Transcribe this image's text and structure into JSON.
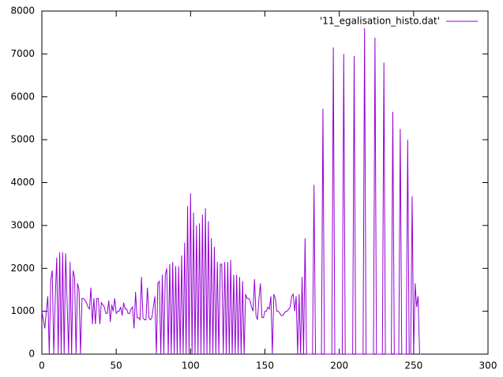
{
  "chart_data": {
    "type": "line",
    "x": [
      0,
      1,
      2,
      3,
      4,
      5,
      6,
      7,
      8,
      9,
      10,
      11,
      12,
      13,
      14,
      15,
      16,
      17,
      18,
      19,
      20,
      21,
      22,
      23,
      24,
      25,
      26,
      27,
      28,
      29,
      30,
      31,
      32,
      33,
      34,
      35,
      36,
      37,
      38,
      39,
      40,
      41,
      42,
      43,
      44,
      45,
      46,
      47,
      48,
      49,
      50,
      51,
      52,
      53,
      54,
      55,
      56,
      57,
      58,
      59,
      60,
      61,
      62,
      63,
      64,
      65,
      66,
      67,
      68,
      69,
      70,
      71,
      72,
      73,
      74,
      75,
      76,
      77,
      78,
      79,
      80,
      81,
      82,
      83,
      84,
      85,
      86,
      87,
      88,
      89,
      90,
      91,
      92,
      93,
      94,
      95,
      96,
      97,
      98,
      99,
      100,
      101,
      102,
      103,
      104,
      105,
      106,
      107,
      108,
      109,
      110,
      111,
      112,
      113,
      114,
      115,
      116,
      117,
      118,
      119,
      120,
      121,
      122,
      123,
      124,
      125,
      126,
      127,
      128,
      129,
      130,
      131,
      132,
      133,
      134,
      135,
      136,
      137,
      138,
      139,
      140,
      141,
      142,
      143,
      144,
      145,
      146,
      147,
      148,
      149,
      150,
      151,
      152,
      153,
      154,
      155,
      156,
      157,
      158,
      159,
      160,
      161,
      162,
      163,
      164,
      165,
      166,
      167,
      168,
      169,
      170,
      171,
      172,
      173,
      174,
      175,
      176,
      177,
      178,
      179,
      180,
      181,
      182,
      183,
      184,
      185,
      186,
      187,
      188,
      189,
      190,
      191,
      192,
      193,
      194,
      195,
      196,
      197,
      198,
      199,
      200,
      201,
      202,
      203,
      204,
      205,
      206,
      207,
      208,
      209,
      210,
      211,
      212,
      213,
      214,
      215,
      216,
      217,
      218,
      219,
      220,
      221,
      222,
      223,
      224,
      225,
      226,
      227,
      228,
      229,
      230,
      231,
      232,
      233,
      234,
      235,
      236,
      237,
      238,
      239,
      240,
      241,
      242,
      243,
      244,
      245,
      246,
      247,
      248,
      249,
      250,
      251,
      252,
      253,
      254,
      255
    ],
    "series": [
      {
        "name": "'11_egalisation_histo.dat'",
        "color": "#9400d3",
        "values": [
          1000,
          800,
          600,
          1000,
          1350,
          0,
          1750,
          1950,
          0,
          1300,
          2250,
          0,
          2370,
          0,
          2370,
          0,
          2350,
          1200,
          0,
          2150,
          0,
          1950,
          1800,
          0,
          1650,
          1500,
          0,
          1300,
          1300,
          1250,
          1200,
          1100,
          1050,
          1550,
          700,
          1300,
          700,
          1300,
          1300,
          700,
          1200,
          1150,
          1100,
          950,
          950,
          1250,
          750,
          1150,
          1000,
          1300,
          950,
          1000,
          1000,
          1100,
          900,
          1200,
          1050,
          1050,
          950,
          950,
          1050,
          1100,
          600,
          1450,
          850,
          850,
          800,
          1800,
          850,
          800,
          800,
          1550,
          850,
          800,
          850,
          1100,
          1350,
          0,
          1650,
          1700,
          0,
          1850,
          0,
          1850,
          2000,
          0,
          2100,
          0,
          2150,
          0,
          2050,
          0,
          2050,
          0,
          2300,
          0,
          2600,
          0,
          3450,
          0,
          3750,
          0,
          3300,
          0,
          3000,
          0,
          3050,
          0,
          3250,
          0,
          3400,
          0,
          3100,
          0,
          2700,
          0,
          2500,
          0,
          2150,
          0,
          2100,
          2100,
          0,
          2150,
          0,
          2150,
          0,
          2200,
          0,
          1850,
          0,
          1850,
          0,
          1800,
          0,
          1700,
          0,
          1400,
          1300,
          1300,
          1250,
          1100,
          1000,
          1750,
          900,
          800,
          1300,
          1650,
          850,
          850,
          1000,
          1000,
          1100,
          1050,
          1350,
          0,
          1400,
          1300,
          1000,
          1000,
          950,
          900,
          900,
          950,
          1000,
          1000,
          1050,
          1100,
          1350,
          1400,
          1000,
          1350,
          0,
          1400,
          0,
          1800,
          0,
          2700,
          0,
          0,
          0,
          0,
          0,
          3950,
          0,
          0,
          0,
          0,
          0,
          5720,
          0,
          0,
          0,
          0,
          0,
          0,
          7150,
          0,
          0,
          0,
          0,
          0,
          0,
          7000,
          0,
          0,
          0,
          0,
          0,
          0,
          6950,
          0,
          0,
          0,
          0,
          0,
          0,
          7600,
          0,
          0,
          0,
          0,
          0,
          0,
          7380,
          0,
          0,
          0,
          0,
          0,
          6800,
          0,
          0,
          0,
          0,
          0,
          5650,
          0,
          0,
          0,
          0,
          5250,
          0,
          0,
          0,
          0,
          5000,
          0,
          0,
          3680,
          0,
          1650,
          1100,
          1350,
          0,
          0
        ]
      }
    ],
    "xlim": [
      0,
      300
    ],
    "xticks": [
      0,
      50,
      100,
      150,
      200,
      250,
      300
    ],
    "ylim": [
      0,
      8000
    ],
    "yticks": [
      0,
      1000,
      2000,
      3000,
      4000,
      5000,
      6000,
      7000,
      8000
    ],
    "legend": "top-right"
  }
}
